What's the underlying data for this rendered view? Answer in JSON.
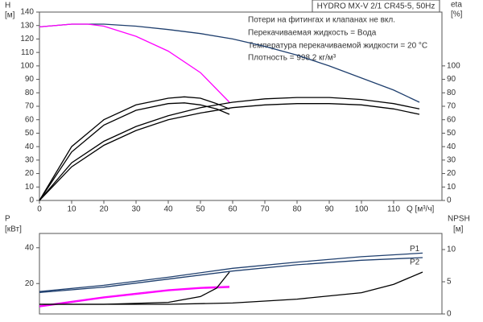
{
  "chart_data": [
    {
      "type": "line",
      "title": "HYDRO MX-V 2/1 CR45-5, 50Hz",
      "annotations": [
        "Потери на фитингах и клапанах не вкл.",
        "Перекачиваемая жидкость = Вода",
        "Температура перекачиваемой жидкости = 20 °C",
        "Плотность = 998.2 кг/м³"
      ],
      "ylabel": "H",
      "yunit": "[м]",
      "y2label": "eta",
      "y2unit": "[%]",
      "xlabel": "Q [м³/ч]",
      "xlim": [
        0,
        125
      ],
      "xticks": [
        0,
        10,
        20,
        30,
        40,
        50,
        60,
        70,
        80,
        90,
        100,
        110
      ],
      "ylim": [
        0,
        140
      ],
      "yticks": [
        0,
        10,
        20,
        30,
        40,
        50,
        60,
        70,
        80,
        90,
        100,
        110,
        120,
        130,
        140
      ],
      "y2lim": [
        0,
        140
      ],
      "y2ticks": [
        0,
        10,
        20,
        30,
        40,
        50,
        60,
        70,
        80,
        90,
        100
      ],
      "series": [
        {
          "color": "#1f3f6e",
          "x": [
            0,
            10,
            20,
            30,
            40,
            50,
            60,
            70,
            80,
            90,
            100,
            110,
            118
          ],
          "values": [
            129,
            131,
            131,
            129.5,
            127,
            124,
            120,
            114.5,
            108,
            100,
            91,
            82,
            73
          ]
        },
        {
          "color": "#ff00ff",
          "x": [
            0,
            10,
            15,
            20,
            30,
            40,
            50,
            59
          ],
          "values": [
            129,
            131,
            131,
            129.5,
            122,
            111,
            95,
            73
          ]
        },
        {
          "color": "#000000",
          "axis": "y2",
          "x": [
            0,
            10,
            20,
            30,
            40,
            45,
            50,
            55,
            59
          ],
          "values": [
            0,
            40,
            60,
            71,
            76,
            77,
            76,
            72,
            68
          ]
        },
        {
          "color": "#000000",
          "axis": "y2",
          "x": [
            0,
            10,
            20,
            30,
            40,
            45,
            50,
            55,
            59
          ],
          "values": [
            0,
            36,
            56,
            67,
            72,
            72.5,
            71,
            68,
            64
          ]
        },
        {
          "color": "#000000",
          "axis": "y2",
          "x": [
            0,
            10,
            20,
            30,
            40,
            50,
            60,
            70,
            80,
            90,
            100,
            110,
            118
          ],
          "values": [
            0,
            28,
            44,
            55,
            63,
            69,
            73,
            75.5,
            76.5,
            76.5,
            75,
            72,
            68
          ]
        },
        {
          "color": "#000000",
          "axis": "y2",
          "x": [
            0,
            10,
            20,
            30,
            40,
            50,
            60,
            70,
            80,
            90,
            100,
            110,
            118
          ],
          "values": [
            0,
            25,
            41,
            52,
            60,
            65,
            69,
            71,
            72,
            72,
            71,
            68,
            64
          ]
        }
      ]
    },
    {
      "type": "line",
      "ylabel": "P",
      "yunit": "[кВт]",
      "y2label": "NPSH",
      "y2unit": "[м]",
      "xlim": [
        0,
        125
      ],
      "ylim": [
        3,
        48
      ],
      "yticks": [
        20,
        40
      ],
      "y2lim": [
        0,
        12.5
      ],
      "y2ticks": [
        0,
        5,
        10
      ],
      "series": [
        {
          "name": "P1",
          "color": "#1f3f6e",
          "x": [
            0,
            20,
            40,
            60,
            80,
            100,
            119
          ],
          "values": [
            15.5,
            19,
            23.5,
            28.5,
            32,
            35,
            37
          ]
        },
        {
          "name": "P2",
          "color": "#1f3f6e",
          "x": [
            0,
            20,
            40,
            60,
            80,
            100,
            119
          ],
          "values": [
            15,
            18,
            22.5,
            27,
            30.5,
            33,
            34.5
          ]
        },
        {
          "color": "#ff00ff",
          "x": [
            0,
            10,
            20,
            30,
            40,
            50,
            59
          ],
          "values": [
            7.5,
            10,
            12.5,
            14.5,
            16.5,
            17.8,
            18.5
          ]
        },
        {
          "color": "#ff00ff",
          "x": [
            0,
            10,
            20,
            30,
            40,
            50,
            59
          ],
          "values": [
            7,
            9.5,
            12,
            14,
            16,
            17.3,
            17.8
          ]
        },
        {
          "color": "#000000",
          "axis": "y2",
          "x": [
            0,
            20,
            40,
            50,
            55,
            59
          ],
          "values": [
            1.5,
            1.5,
            1.8,
            2.7,
            4,
            6.5
          ]
        },
        {
          "color": "#000000",
          "axis": "y2",
          "x": [
            0,
            40,
            60,
            80,
            100,
            110,
            119
          ],
          "values": [
            1.5,
            1.5,
            1.7,
            2.3,
            3.3,
            4.6,
            6.5
          ]
        }
      ]
    }
  ]
}
